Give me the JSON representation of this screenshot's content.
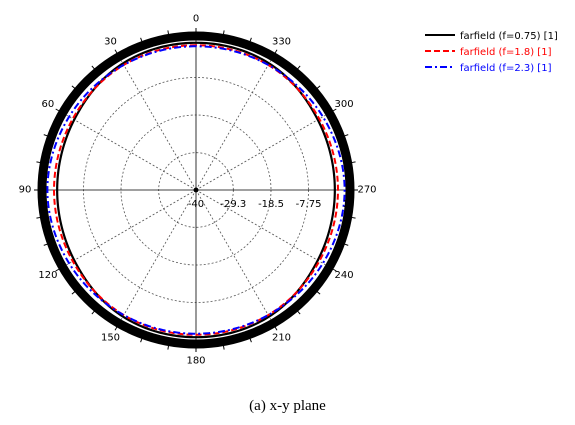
{
  "chart_data": {
    "type": "polar-line",
    "caption": "(a) x-y plane",
    "angular_ticks": [
      "0",
      "30",
      "60",
      "90",
      "120",
      "150",
      "180",
      "210",
      "240",
      "270",
      "300",
      "330"
    ],
    "angular_tick_values": [
      0,
      30,
      60,
      90,
      120,
      150,
      180,
      210,
      240,
      270,
      300,
      330
    ],
    "angular_direction": "counter-clockwise, 0 at top",
    "radial_ticks": [
      "-40",
      "-29.3",
      "-18.5",
      "-7.75",
      "3"
    ],
    "radial_tick_values": [
      -40,
      -29.3,
      -18.5,
      -7.75,
      3
    ],
    "rlim": [
      -40,
      3
    ],
    "grid": true,
    "legend_position": "top-right",
    "series": [
      {
        "name": "farfield (f=0.75) [1]",
        "color": "#000000",
        "dash": "solid",
        "theta": [
          0,
          30,
          60,
          90,
          120,
          150,
          180,
          210,
          240,
          270,
          300,
          330
        ],
        "r": [
          2.2,
          1.9,
          0.3,
          -0.2,
          0.3,
          1.9,
          2.2,
          1.9,
          0.3,
          -0.2,
          0.3,
          1.9
        ]
      },
      {
        "name": "farfield (f=1.8) [1]",
        "color": "#ff0000",
        "dash": "dashed",
        "theta": [
          0,
          30,
          60,
          90,
          120,
          150,
          180,
          210,
          240,
          270,
          300,
          330
        ],
        "r": [
          1.5,
          1.4,
          0.8,
          0.7,
          0.8,
          1.4,
          1.5,
          1.4,
          0.8,
          0.7,
          0.8,
          1.4
        ]
      },
      {
        "name": "farfield (f=2.3) [1]",
        "color": "#0000ff",
        "dash": "dash-dot",
        "theta": [
          0,
          30,
          60,
          90,
          120,
          150,
          180,
          210,
          240,
          270,
          300,
          330
        ],
        "r": [
          1.2,
          1.4,
          2.0,
          2.6,
          2.0,
          1.4,
          1.2,
          1.4,
          2.0,
          2.6,
          2.0,
          1.4
        ]
      }
    ]
  }
}
